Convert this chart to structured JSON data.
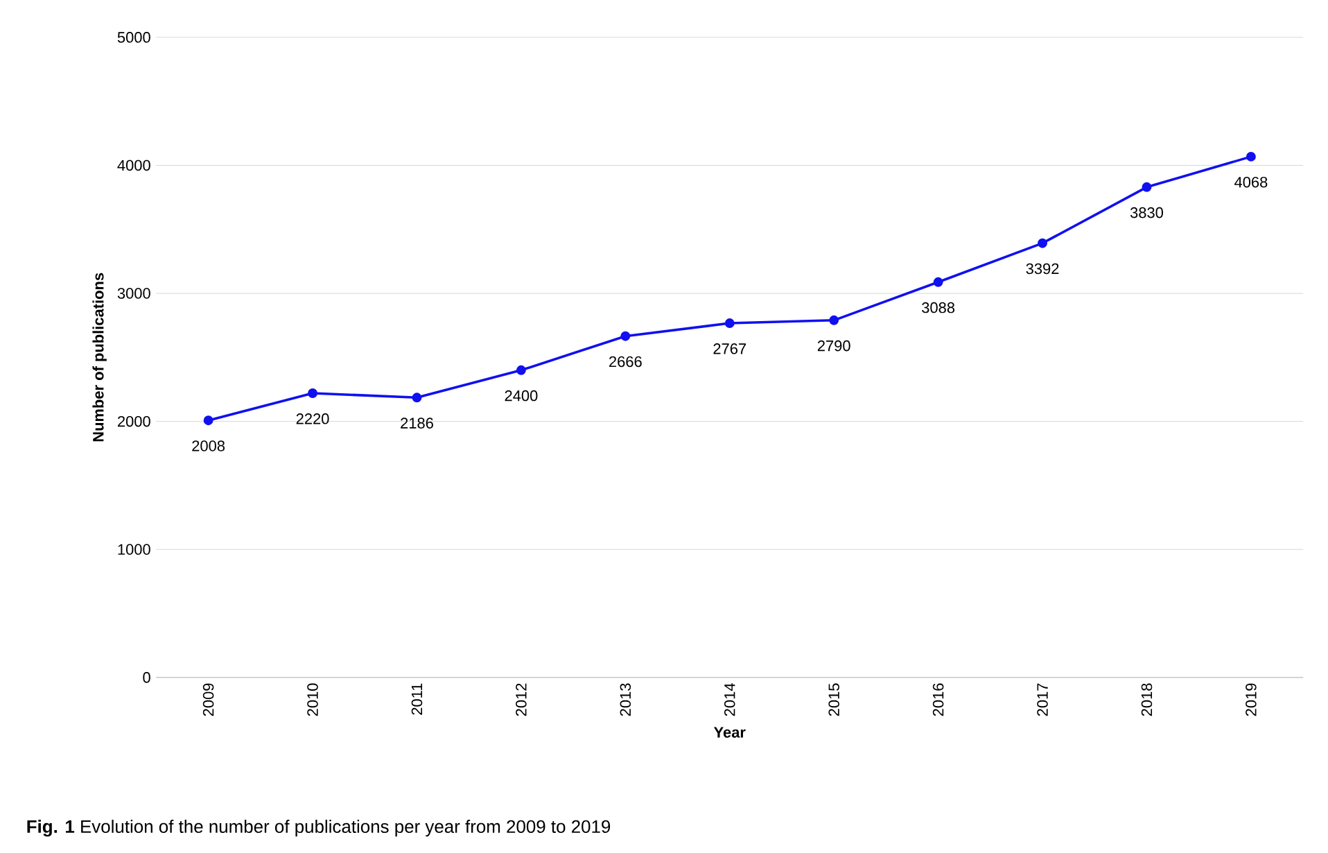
{
  "chart_data": {
    "type": "line",
    "xlabel": "Year",
    "ylabel": "Number of publications",
    "categories": [
      "2009",
      "2010",
      "2011",
      "2012",
      "2013",
      "2014",
      "2015",
      "2016",
      "2017",
      "2018",
      "2019"
    ],
    "series": [
      {
        "color": "#1010f0",
        "values": [
          2008,
          2220,
          2186,
          2400,
          2666,
          2767,
          2790,
          3088,
          3392,
          3830,
          4068
        ]
      }
    ],
    "ylim": [
      0,
      5000
    ],
    "yticks": [
      0,
      1000,
      2000,
      3000,
      4000,
      5000
    ],
    "grid": "y",
    "marker": "circle",
    "line_style": "solid",
    "data_labels": true,
    "annotations": [
      "**Fig. 1** Evolution of the number of publications per year from 2009 to 2019"
    ]
  }
}
